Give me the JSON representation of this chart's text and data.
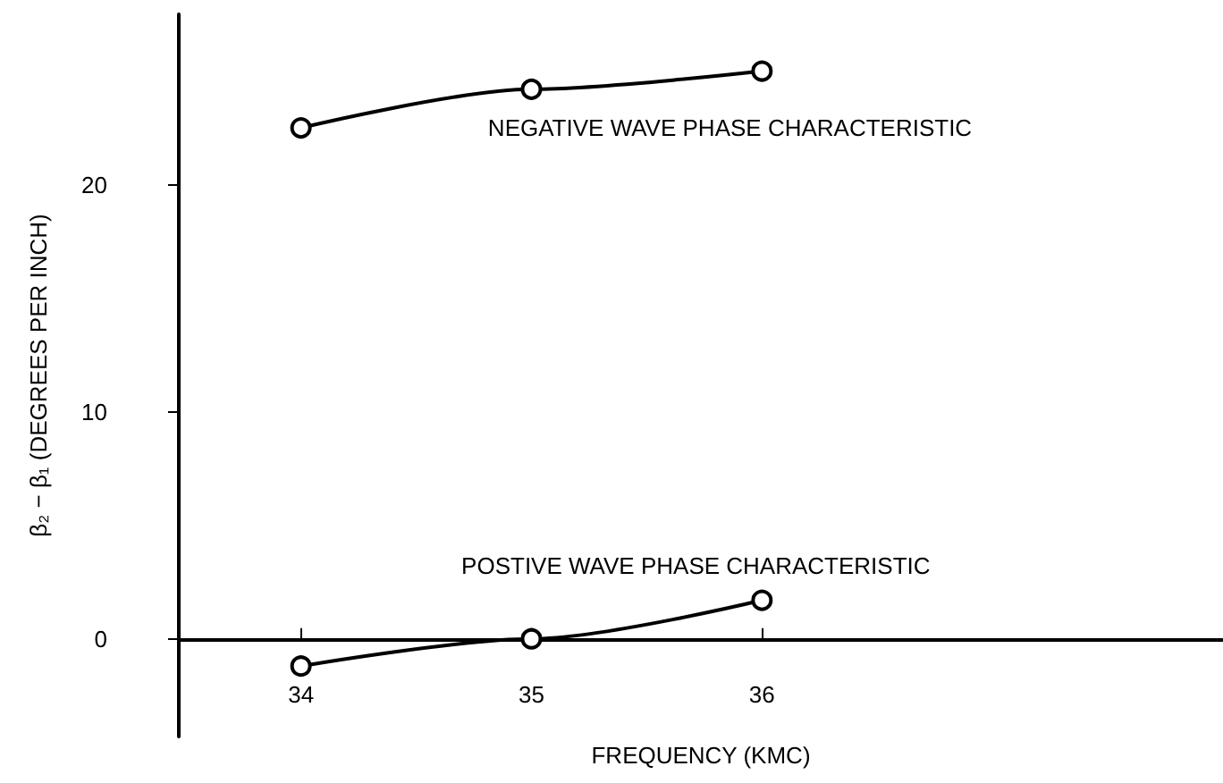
{
  "chart_data": {
    "type": "line",
    "xlabel": "FREQUENCY (KMC)",
    "ylabel": "β₂ − β₁ (DEGREES PER INCH)",
    "x": [
      34,
      35,
      36
    ],
    "series": [
      {
        "name": "NEGATIVE WAVE PHASE CHARACTERISTIC",
        "color": "#000000",
        "values": [
          22.5,
          24.2,
          25.0
        ]
      },
      {
        "name": "POSTIVE WAVE PHASE CHARACTERISTIC",
        "color": "#000000",
        "values": [
          -1.2,
          0,
          1.7
        ]
      }
    ],
    "xlim": [
      33.47,
      38
    ],
    "ylim": [
      -4.3,
      27.5
    ],
    "xticks": [
      34,
      35,
      36
    ],
    "yticks": [
      0,
      10,
      20
    ],
    "grid": false,
    "legend": false,
    "marker": "circle",
    "line_style": "solid"
  }
}
